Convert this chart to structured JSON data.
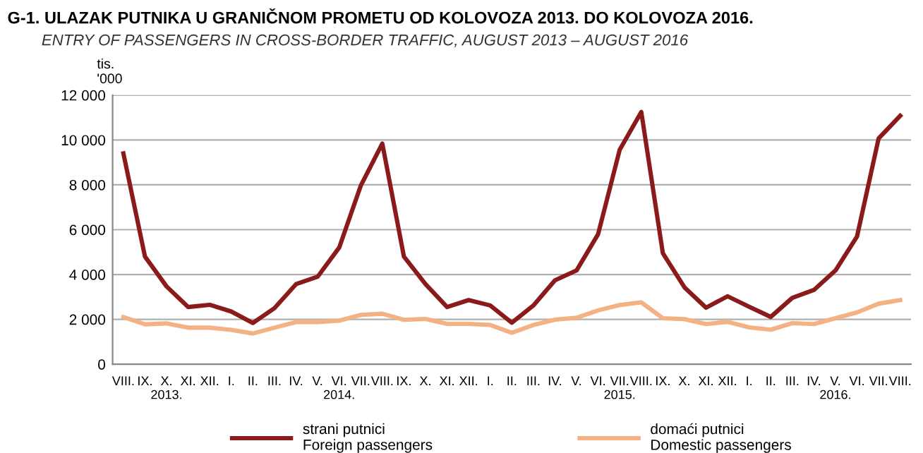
{
  "chart_data": {
    "type": "line",
    "title": "G-1. ULAZAK PUTNIKA U GRANIČNOM PROMETU OD KOLOVOZA 2013. DO KOLOVOZA 2016.",
    "subtitle": "ENTRY OF PASSENGERS IN CROSS-BORDER TRAFFIC, AUGUST 2013 – AUGUST 2016",
    "ylabel": "tis.\n'000",
    "categories": [
      "VIII.",
      "IX.",
      "X.\n2013.",
      "XI.",
      "XII.",
      "I.",
      "II.",
      "III.",
      "IV.",
      "V.",
      "VI.\n2014.",
      "VII.",
      "VIII.",
      "IX.",
      "X.",
      "XI.",
      "XII.",
      "I.",
      "II.",
      "III.",
      "IV.",
      "V.",
      "VI.",
      "VII.\n2015.",
      "VIII.",
      "IX.",
      "X.",
      "XI.",
      "XII.",
      "I.",
      "II.",
      "III.",
      "IV.",
      "V.\n2016.",
      "VI.",
      "VII.",
      "VIII."
    ],
    "series": [
      {
        "name": "strani putnici\nForeign passengers",
        "color": "#8b1a1a",
        "values": [
          9400,
          4800,
          3470,
          2550,
          2650,
          2350,
          1840,
          2500,
          3570,
          3900,
          5200,
          7960,
          9840,
          4800,
          3570,
          2550,
          2860,
          2620,
          1850,
          2620,
          3740,
          4180,
          5800,
          9560,
          11250,
          4950,
          3430,
          2520,
          3030,
          2560,
          2110,
          2960,
          3310,
          4180,
          5700,
          10070,
          11080
        ]
      },
      {
        "name": "domaći putnici\nDomestic passengers",
        "color": "#f4b183",
        "values": [
          2100,
          1780,
          1820,
          1630,
          1630,
          1530,
          1370,
          1630,
          1880,
          1880,
          1940,
          2200,
          2250,
          1980,
          2020,
          1800,
          1800,
          1750,
          1400,
          1750,
          1990,
          2070,
          2400,
          2640,
          2760,
          2050,
          2010,
          1790,
          1890,
          1640,
          1540,
          1830,
          1790,
          2050,
          2310,
          2700,
          2860
        ]
      }
    ],
    "ylim": [
      0,
      12000
    ],
    "yticks": [
      {
        "value": 0,
        "label": "0"
      },
      {
        "value": 2000,
        "label": "2 000"
      },
      {
        "value": 4000,
        "label": "4 000"
      },
      {
        "value": 6000,
        "label": "6 000"
      },
      {
        "value": 8000,
        "label": "8 000"
      },
      {
        "value": 10000,
        "label": "10 000"
      },
      {
        "value": 12000,
        "label": "12 000"
      }
    ],
    "grid": "y",
    "legend": "bottom",
    "marker": "none",
    "line_style": "solid"
  }
}
